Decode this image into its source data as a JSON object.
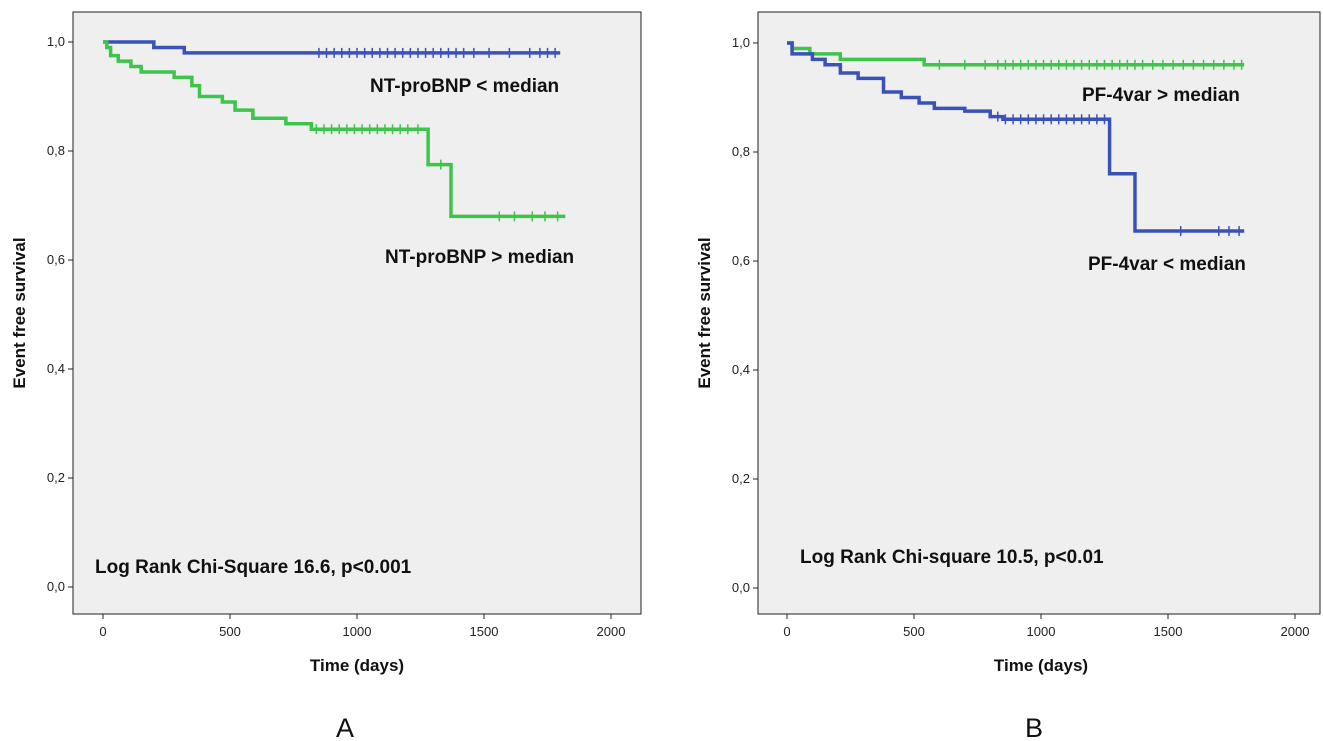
{
  "chart_data": [
    {
      "type": "line",
      "panel_label": "A",
      "xlabel": "Time (days)",
      "ylabel": "Event free survival",
      "xlim": [
        0,
        2000
      ],
      "ylim": [
        0,
        1.0
      ],
      "x_ticks": [
        0,
        500,
        1000,
        1500,
        2000
      ],
      "x_tick_labels": [
        "0",
        "500",
        "1000",
        "1500",
        "2000"
      ],
      "y_ticks": [
        0,
        0.2,
        0.4,
        0.6,
        0.8,
        1.0
      ],
      "y_tick_labels": [
        "0,0",
        "0,2",
        "0,4",
        "0,6",
        "0,8",
        "1,0"
      ],
      "grid": false,
      "annotation": "Log Rank Chi-Square 16.6,  p<0.001",
      "series": [
        {
          "name": "NT-proBNP < median",
          "color": "#3a52b8",
          "steps": [
            [
              0,
              1.0
            ],
            [
              200,
              0.99
            ],
            [
              320,
              0.98
            ],
            [
              1800,
              0.98
            ]
          ],
          "censored": [
            850,
            880,
            910,
            940,
            970,
            1000,
            1030,
            1060,
            1090,
            1120,
            1150,
            1180,
            1210,
            1240,
            1270,
            1300,
            1330,
            1360,
            1390,
            1420,
            1460,
            1520,
            1600,
            1680,
            1720,
            1750,
            1780
          ]
        },
        {
          "name": "NT-proBNP > median",
          "color": "#3ec44a",
          "steps": [
            [
              0,
              1.0
            ],
            [
              15,
              0.99
            ],
            [
              30,
              0.975
            ],
            [
              60,
              0.965
            ],
            [
              110,
              0.955
            ],
            [
              150,
              0.945
            ],
            [
              280,
              0.935
            ],
            [
              350,
              0.92
            ],
            [
              380,
              0.9
            ],
            [
              470,
              0.89
            ],
            [
              520,
              0.875
            ],
            [
              590,
              0.86
            ],
            [
              720,
              0.85
            ],
            [
              820,
              0.84
            ],
            [
              1280,
              0.775
            ],
            [
              1370,
              0.68
            ],
            [
              1820,
              0.68
            ]
          ],
          "censored": [
            840,
            870,
            900,
            930,
            960,
            990,
            1020,
            1050,
            1080,
            1110,
            1140,
            1170,
            1200,
            1240,
            1330,
            1560,
            1620,
            1690,
            1740,
            1790
          ]
        }
      ]
    },
    {
      "type": "line",
      "panel_label": "B",
      "xlabel": "Time (days)",
      "ylabel": "Event free survival",
      "xlim": [
        0,
        2000
      ],
      "ylim": [
        0,
        1.0
      ],
      "x_ticks": [
        0,
        500,
        1000,
        1500,
        2000
      ],
      "x_tick_labels": [
        "0",
        "500",
        "1000",
        "1500",
        "2000"
      ],
      "y_ticks": [
        0,
        0.2,
        0.4,
        0.6,
        0.8,
        1.0
      ],
      "y_tick_labels": [
        "0,0",
        "0,2",
        "0,4",
        "0,6",
        "0,8",
        "1,0"
      ],
      "grid": false,
      "annotation": "Log Rank Chi-square 10.5, p<0.01",
      "series": [
        {
          "name": "PF-4var > median",
          "color": "#3ec44a",
          "steps": [
            [
              0,
              1.0
            ],
            [
              20,
              0.99
            ],
            [
              90,
              0.98
            ],
            [
              210,
              0.97
            ],
            [
              540,
              0.96
            ],
            [
              1800,
              0.96
            ]
          ],
          "censored": [
            600,
            700,
            780,
            830,
            860,
            890,
            920,
            950,
            980,
            1010,
            1040,
            1070,
            1100,
            1130,
            1160,
            1190,
            1220,
            1250,
            1280,
            1310,
            1340,
            1370,
            1400,
            1440,
            1480,
            1520,
            1560,
            1600,
            1640,
            1680,
            1720,
            1760,
            1790
          ]
        },
        {
          "name": "PF-4var < median",
          "color": "#3a52b8",
          "steps": [
            [
              0,
              1.0
            ],
            [
              20,
              0.98
            ],
            [
              100,
              0.97
            ],
            [
              150,
              0.96
            ],
            [
              210,
              0.945
            ],
            [
              280,
              0.935
            ],
            [
              380,
              0.91
            ],
            [
              450,
              0.9
            ],
            [
              520,
              0.89
            ],
            [
              580,
              0.88
            ],
            [
              700,
              0.875
            ],
            [
              800,
              0.865
            ],
            [
              850,
              0.86
            ],
            [
              1270,
              0.76
            ],
            [
              1370,
              0.655
            ],
            [
              1800,
              0.655
            ]
          ],
          "censored": [
            830,
            860,
            890,
            920,
            950,
            980,
            1010,
            1040,
            1070,
            1100,
            1130,
            1160,
            1190,
            1220,
            1250,
            1550,
            1700,
            1740,
            1780
          ]
        }
      ]
    }
  ]
}
